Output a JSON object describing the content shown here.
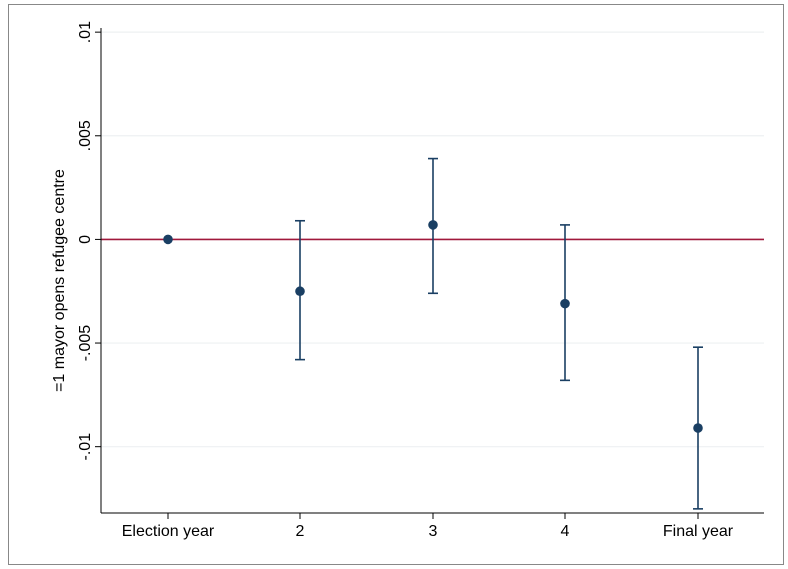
{
  "chart_data": {
    "type": "scatter",
    "title": "",
    "xlabel": "",
    "ylabel": "=1 mayor opens refugee centre",
    "categories": [
      "Election year",
      "2",
      "3",
      "4",
      "Final year"
    ],
    "series": [
      {
        "values": [
          0.0,
          -0.0025,
          0.0007,
          -0.0031,
          -0.0091
        ],
        "ci_low": [
          0.0,
          -0.0058,
          -0.0026,
          -0.0068,
          -0.013
        ],
        "ci_high": [
          0.0,
          0.0009,
          0.0039,
          0.0007,
          -0.0052
        ]
      }
    ],
    "yticks": [
      0.01,
      0.005,
      0,
      -0.005,
      -0.01
    ],
    "ytick_labels": [
      ".01",
      ".005",
      "0",
      "-.005",
      "-.01"
    ],
    "ylim": [
      -0.0132,
      0.0102
    ],
    "reference_line": 0,
    "grid": true,
    "colors": {
      "marker": "#1a3f63",
      "errorbar": "#1a3f63",
      "reference_line": "#a0193c",
      "grid": "#eef0f2",
      "axis": "#000000",
      "frame": "#888888"
    }
  }
}
